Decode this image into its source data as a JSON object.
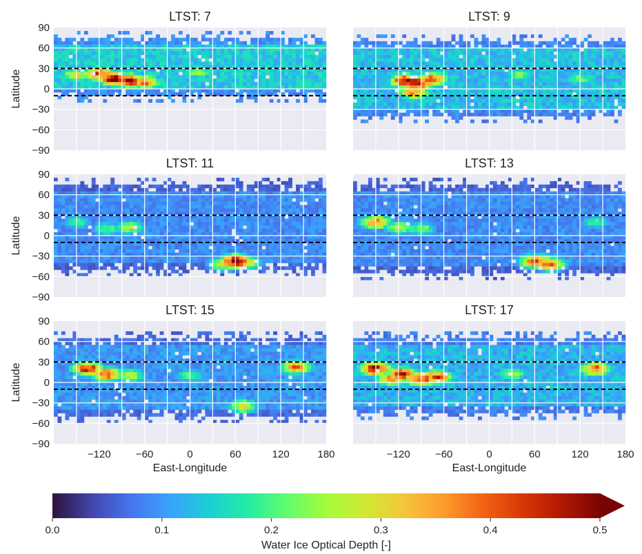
{
  "colors": {
    "panel_background": "#eaeaf2",
    "grid": "#ffffff",
    "reference_line": "#000000",
    "colormap": [
      "#30123b",
      "#4145ab",
      "#4675ed",
      "#39a2fc",
      "#1bcfd4",
      "#24eca6",
      "#61fc6c",
      "#a4fc3b",
      "#d1e834",
      "#f3c63a",
      "#fe9b2d",
      "#f36315",
      "#d93806",
      "#b11901",
      "#7a0403"
    ]
  },
  "colorbar": {
    "label": "Water Ice Optical Depth [-]",
    "tick_labels": [
      "0.0",
      "0.1",
      "0.2",
      "0.3",
      "0.4",
      "0.5"
    ],
    "range": [
      0.0,
      0.5
    ],
    "extend": "max"
  },
  "chart_data": [
    {
      "type": "heatmap",
      "title": "LTST: 7",
      "xlabel": "",
      "ylabel": "Latitude",
      "xlim": [
        -180,
        180
      ],
      "ylim": [
        -90,
        90
      ],
      "x_tick_labels": [],
      "y_tick_labels": [
        "90",
        "60",
        "30",
        "0",
        "−30",
        "−60",
        "−90"
      ],
      "reference_lines_lat": [
        30,
        -10
      ],
      "grid": true,
      "lat_coverage": [
        -12,
        75
      ],
      "background_value": 0.14,
      "hotspots": [
        {
          "lon": -100,
          "lat": 15,
          "value": 0.5
        },
        {
          "lon": -80,
          "lat": 12,
          "value": 0.5
        },
        {
          "lon": -120,
          "lat": 22,
          "value": 0.42
        },
        {
          "lon": -60,
          "lat": 10,
          "value": 0.38
        },
        {
          "lon": -150,
          "lat": 20,
          "value": 0.3
        },
        {
          "lon": 10,
          "lat": 25,
          "value": 0.24
        }
      ]
    },
    {
      "type": "heatmap",
      "title": "LTST: 9",
      "xlabel": "",
      "ylabel": "",
      "xlim": [
        -180,
        180
      ],
      "ylim": [
        -90,
        90
      ],
      "x_tick_labels": [],
      "y_tick_labels": [],
      "reference_lines_lat": [
        30,
        -10
      ],
      "grid": true,
      "lat_coverage": [
        -40,
        70
      ],
      "background_value": 0.13,
      "hotspots": [
        {
          "lon": -95,
          "lat": 8,
          "value": 0.5
        },
        {
          "lon": -110,
          "lat": 12,
          "value": 0.48
        },
        {
          "lon": -75,
          "lat": 14,
          "value": 0.42
        },
        {
          "lon": -100,
          "lat": -5,
          "value": 0.38
        },
        {
          "lon": 40,
          "lat": 20,
          "value": 0.22
        },
        {
          "lon": 120,
          "lat": 15,
          "value": 0.22
        }
      ]
    },
    {
      "type": "heatmap",
      "title": "LTST: 11",
      "xlabel": "",
      "ylabel": "Latitude",
      "xlim": [
        -180,
        180
      ],
      "ylim": [
        -90,
        90
      ],
      "x_tick_labels": [],
      "y_tick_labels": [
        "90",
        "60",
        "30",
        "0",
        "−30",
        "−60",
        "−90"
      ],
      "reference_lines_lat": [
        30,
        -10
      ],
      "grid": true,
      "lat_coverage": [
        -50,
        75
      ],
      "background_value": 0.09,
      "hotspots": [
        {
          "lon": -80,
          "lat": 12,
          "value": 0.26
        },
        {
          "lon": -110,
          "lat": 10,
          "value": 0.22
        },
        {
          "lon": -150,
          "lat": 20,
          "value": 0.2
        },
        {
          "lon": 60,
          "lat": -38,
          "value": 0.5
        },
        {
          "lon": 75,
          "lat": -40,
          "value": 0.3
        },
        {
          "lon": 45,
          "lat": -42,
          "value": 0.3
        }
      ]
    },
    {
      "type": "heatmap",
      "title": "LTST: 13",
      "xlabel": "",
      "ylabel": "",
      "xlim": [
        -180,
        180
      ],
      "ylim": [
        -90,
        90
      ],
      "x_tick_labels": [],
      "y_tick_labels": [],
      "reference_lines_lat": [
        30,
        -10
      ],
      "grid": true,
      "lat_coverage": [
        -55,
        75
      ],
      "background_value": 0.09,
      "hotspots": [
        {
          "lon": -150,
          "lat": 20,
          "value": 0.38
        },
        {
          "lon": -120,
          "lat": 12,
          "value": 0.26
        },
        {
          "lon": -90,
          "lat": 10,
          "value": 0.24
        },
        {
          "lon": 60,
          "lat": -38,
          "value": 0.4
        },
        {
          "lon": 80,
          "lat": -42,
          "value": 0.4
        },
        {
          "lon": 70,
          "lat": -38,
          "value": 0.34
        },
        {
          "lon": 140,
          "lat": 20,
          "value": 0.2
        }
      ]
    },
    {
      "type": "heatmap",
      "title": "LTST: 15",
      "xlabel": "East-Longitude",
      "ylabel": "Latitude",
      "xlim": [
        -180,
        180
      ],
      "ylim": [
        -90,
        90
      ],
      "x_tick_labels": [
        "−120",
        "−60",
        "0",
        "60",
        "120",
        "180"
      ],
      "y_tick_labels": [
        "90",
        "60",
        "30",
        "0",
        "−30",
        "−60",
        "−90"
      ],
      "reference_lines_lat": [
        30,
        -10
      ],
      "grid": true,
      "lat_coverage": [
        -50,
        65
      ],
      "background_value": 0.1,
      "hotspots": [
        {
          "lon": -135,
          "lat": 20,
          "value": 0.45
        },
        {
          "lon": -110,
          "lat": 12,
          "value": 0.42
        },
        {
          "lon": -80,
          "lat": 10,
          "value": 0.28
        },
        {
          "lon": 140,
          "lat": 22,
          "value": 0.38
        },
        {
          "lon": 70,
          "lat": -35,
          "value": 0.3
        },
        {
          "lon": 0,
          "lat": 10,
          "value": 0.2
        }
      ]
    },
    {
      "type": "heatmap",
      "title": "LTST: 17",
      "xlabel": "East-Longitude",
      "ylabel": "",
      "xlim": [
        -180,
        180
      ],
      "ylim": [
        -90,
        90
      ],
      "x_tick_labels": [
        "−120",
        "−60",
        "0",
        "60",
        "120",
        "180"
      ],
      "y_tick_labels": [],
      "reference_lines_lat": [
        30,
        -10
      ],
      "grid": true,
      "lat_coverage": [
        -45,
        65
      ],
      "background_value": 0.12,
      "hotspots": [
        {
          "lon": -150,
          "lat": 20,
          "value": 0.5
        },
        {
          "lon": -115,
          "lat": 12,
          "value": 0.48
        },
        {
          "lon": -90,
          "lat": 5,
          "value": 0.45
        },
        {
          "lon": -70,
          "lat": 8,
          "value": 0.42
        },
        {
          "lon": -130,
          "lat": 5,
          "value": 0.35
        },
        {
          "lon": 140,
          "lat": 20,
          "value": 0.4
        },
        {
          "lon": 30,
          "lat": 12,
          "value": 0.26
        }
      ]
    }
  ]
}
